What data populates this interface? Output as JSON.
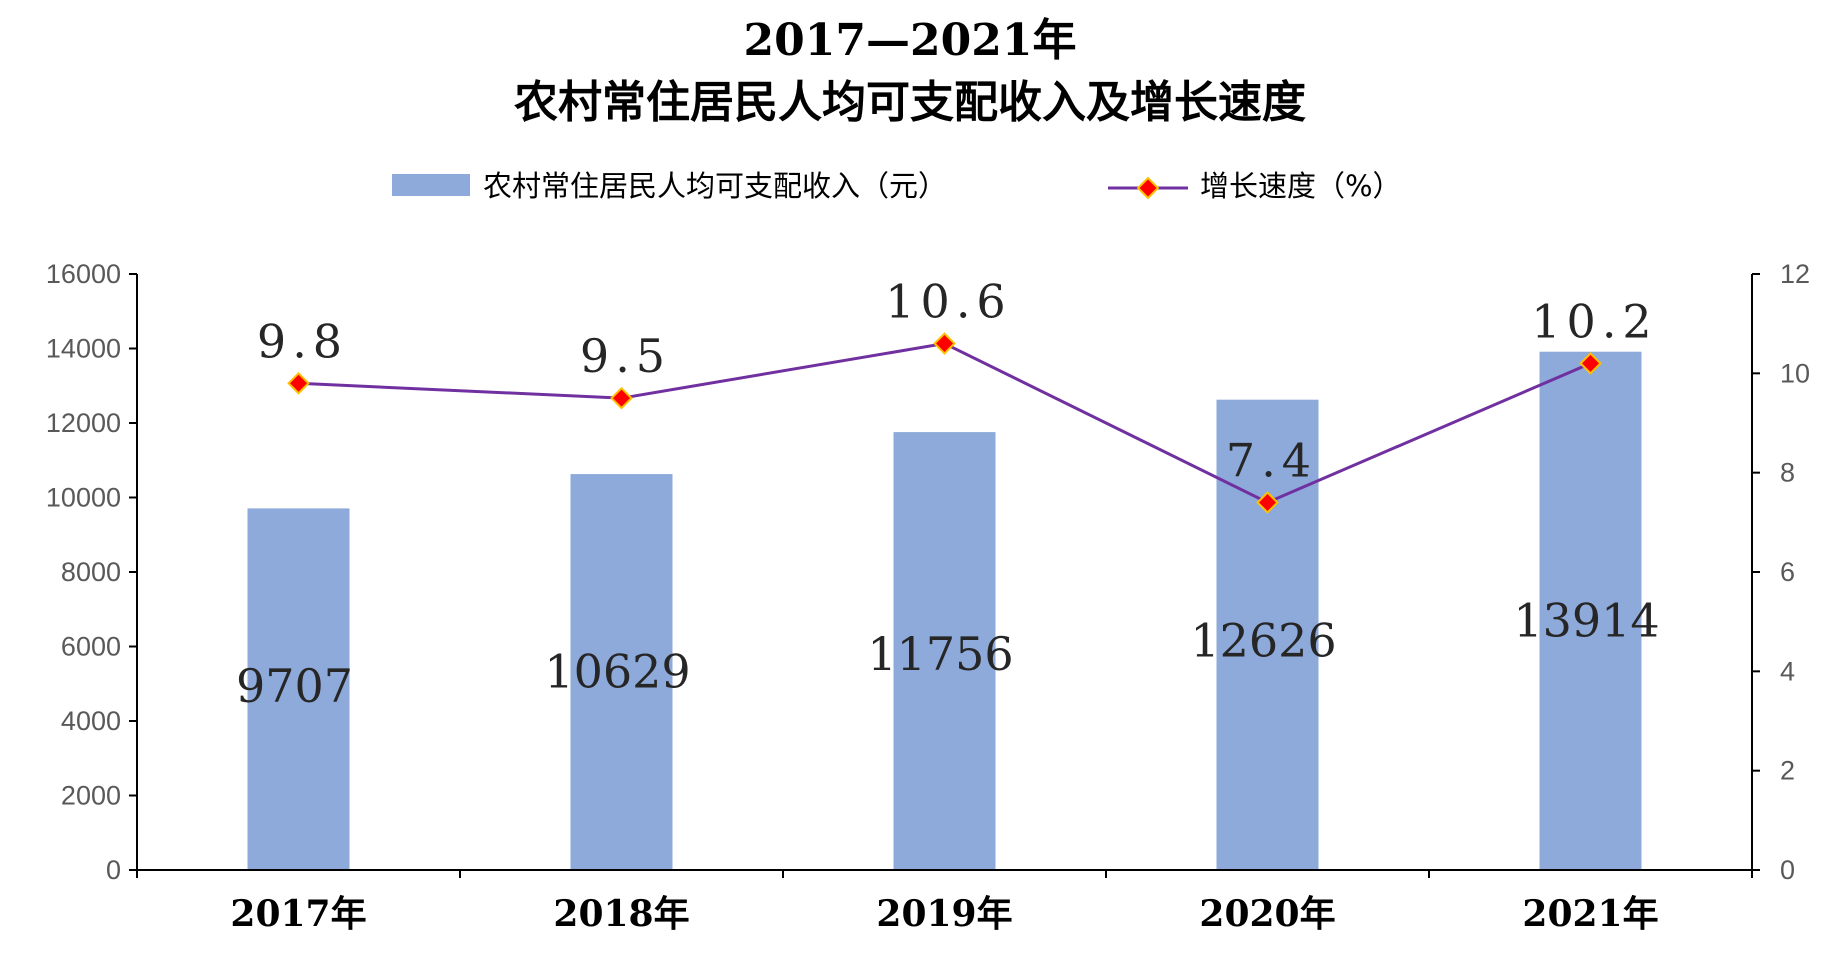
{
  "colors": {
    "bar": "#8eaadb",
    "line": "#7030a0",
    "marker_fill": "#ff0000",
    "marker_stroke": "#ffc000",
    "axis": "#000000",
    "text": "#000000",
    "tick_text": "#595959"
  },
  "chart_data": {
    "type": "bar",
    "title": "2017—2021年",
    "subtitle": "农村常住居民人均可支配收入及增长速度",
    "categories": [
      "2017年",
      "2018年",
      "2019年",
      "2020年",
      "2021年"
    ],
    "series": [
      {
        "name": "农村常住居民人均可支配收入（元）",
        "type": "bar",
        "axis": "left",
        "values": [
          9707,
          10629,
          11756,
          12626,
          13914
        ],
        "labels": [
          "9707",
          "10629",
          "11756",
          "12626",
          "13914"
        ]
      },
      {
        "name": "增长速度（%）",
        "type": "line",
        "axis": "right",
        "values": [
          9.8,
          9.5,
          10.6,
          7.4,
          10.2
        ],
        "labels": [
          "9.8",
          "9.5",
          "10.6",
          "7.4",
          "10.2"
        ]
      }
    ],
    "y_left": {
      "min": 0,
      "max": 16000,
      "ticks": [
        "0",
        "2000",
        "4000",
        "6000",
        "8000",
        "10000",
        "12000",
        "14000",
        "16000"
      ]
    },
    "y_right": {
      "min": 0,
      "max": 12,
      "ticks": [
        "0",
        "2",
        "4",
        "6",
        "8",
        "10",
        "12"
      ]
    },
    "grid": false,
    "legend": "top-center"
  }
}
